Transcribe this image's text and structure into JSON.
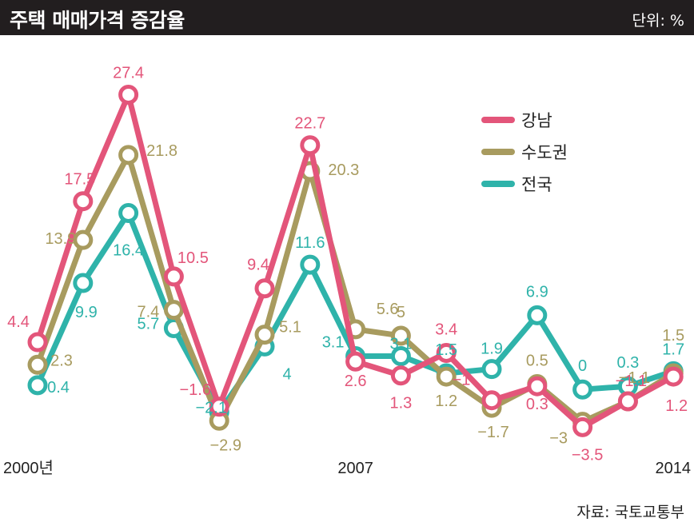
{
  "header": {
    "title": "주택 매매가격 증감율",
    "unit": "단위: %"
  },
  "source": "자료: 국토교통부",
  "colors": {
    "header_bg": "#221e1f",
    "gangnam": "#e3557a",
    "capital": "#a89b5f",
    "national": "#2fb3aa"
  },
  "chart_data": {
    "type": "line",
    "x": [
      2000,
      2001,
      2002,
      2003,
      2004,
      2005,
      2006,
      2007,
      2008,
      2009,
      2010,
      2011,
      2012,
      2013,
      2014
    ],
    "x_tick_labels": {
      "0": "2000년",
      "7": "2007",
      "14": "2014"
    },
    "ylim": [
      -6,
      31
    ],
    "grid": false,
    "legend_position": "top-right",
    "series": [
      {
        "name": "강남",
        "color_key": "gangnam",
        "values": [
          4.4,
          17.5,
          27.4,
          10.5,
          -1.6,
          9.4,
          22.7,
          2.6,
          1.3,
          3.4,
          -1,
          0.3,
          -3.5,
          -1.1,
          1.2
        ]
      },
      {
        "name": "수도권",
        "color_key": "capital",
        "values": [
          2.3,
          13.9,
          21.8,
          7.4,
          -2.9,
          5.1,
          20.3,
          5.6,
          5,
          1.2,
          -1.7,
          0.5,
          -3,
          -1.1,
          1.5
        ]
      },
      {
        "name": "전국",
        "color_key": "national",
        "values": [
          0.4,
          9.9,
          16.4,
          5.7,
          -2.1,
          4,
          11.6,
          3.1,
          3.1,
          1.5,
          1.9,
          6.9,
          0,
          0.3,
          1.7
        ]
      }
    ]
  }
}
